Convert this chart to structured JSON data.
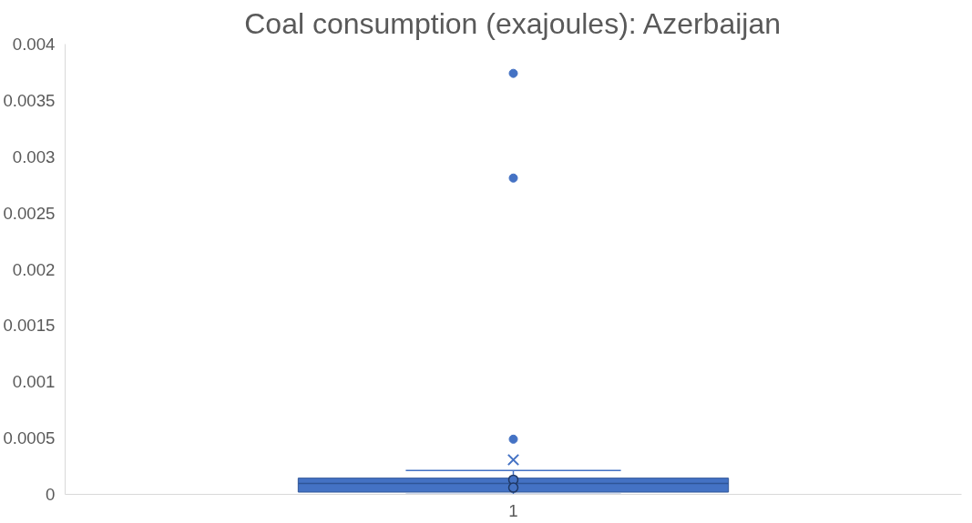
{
  "chart_data": {
    "type": "box",
    "title": "Coal consumption (exajoules): Azerbaijan",
    "categories": [
      "1"
    ],
    "boxes": [
      {
        "low": 0,
        "q1": 2e-05,
        "median": 9.7e-05,
        "q3": 0.000144,
        "high": 0.000213,
        "mean": 0.000307,
        "outliers": [
          0.00049,
          0.00281,
          0.00374
        ]
      }
    ],
    "series": [
      {
        "type": "scatter",
        "x": [
          "1",
          "1"
        ],
        "values": [
          0.00013,
          6e-05
        ],
        "color": "#4472c4"
      }
    ],
    "color": "#4472c4",
    "ylim": [
      0,
      0.004
    ],
    "yticks": [
      0,
      0.0005,
      0.001,
      0.0015,
      0.002,
      0.0025,
      0.003,
      0.0035,
      0.004
    ],
    "grid": false
  }
}
